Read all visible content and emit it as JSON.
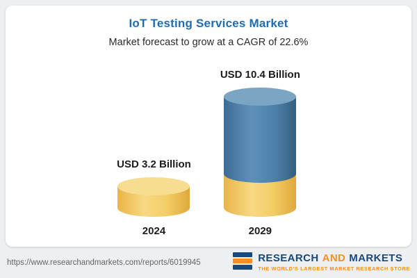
{
  "chart_data": {
    "type": "bar",
    "title": "IoT Testing Services Market",
    "subtitle": "Market forecast to grow at a CAGR of 22.6%",
    "cagr_percent": 22.6,
    "unit": "USD Billion",
    "categories": [
      "2024",
      "2029"
    ],
    "values": [
      3.2,
      10.4
    ],
    "value_labels": [
      "USD 3.2 Billion",
      "USD 10.4 Billion"
    ],
    "ylim": [
      0,
      10.4
    ],
    "grid": false,
    "legend_position": "none",
    "bar_style": "3d-cylinder",
    "colors": {
      "title_text": "#1e6db2",
      "gold_bar": "#f2c961",
      "blue_bar": "#4b7fa8",
      "label_text": "#1c1c1c"
    }
  },
  "footer": {
    "url": "https://www.researchandmarkets.com/reports/6019945",
    "logo": {
      "word1": "RESEARCH",
      "word2": "AND",
      "word3": "MARKETS",
      "tagline": "THE WORLD'S LARGEST MARKET RESEARCH STORE",
      "blue": "#164a7c",
      "orange": "#f4901e"
    }
  }
}
